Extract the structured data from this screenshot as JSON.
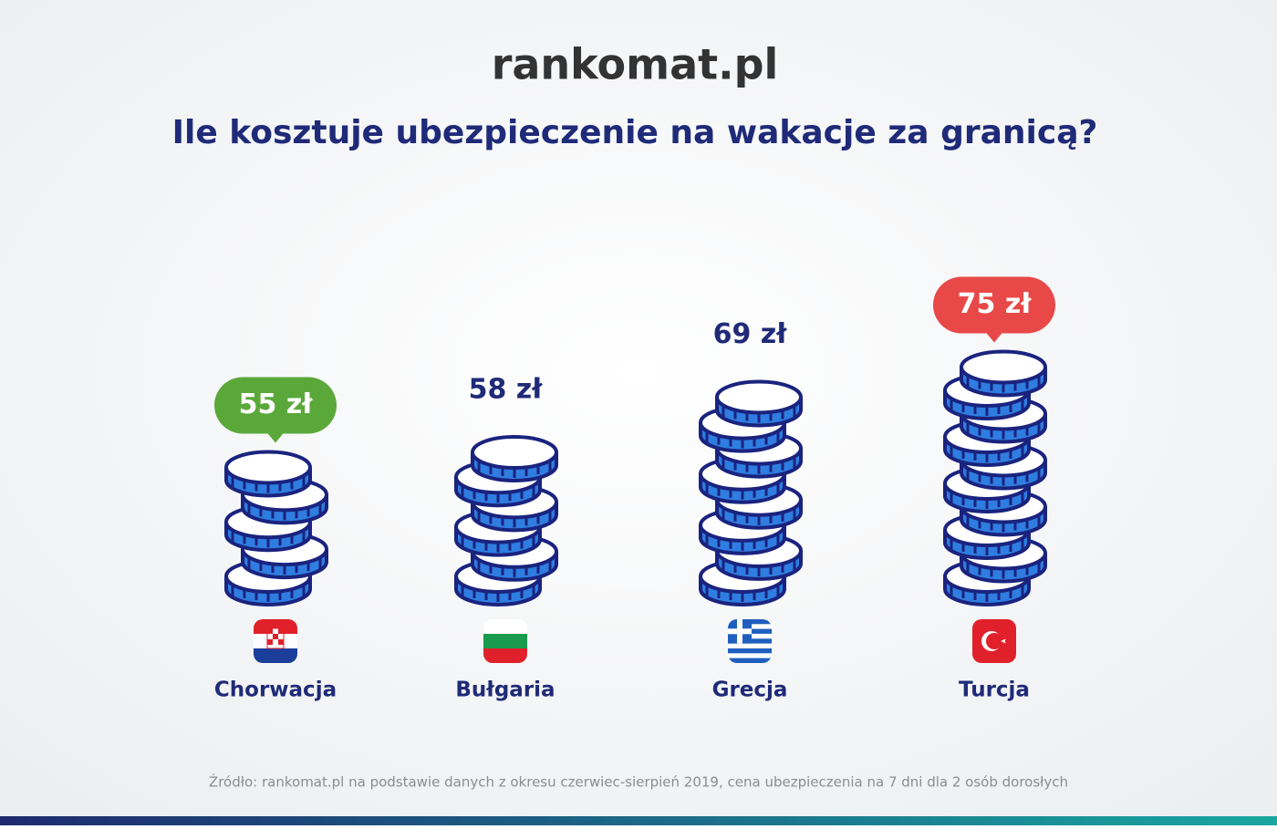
{
  "logo": "rankomat.pl",
  "chart_data": {
    "type": "coin-stack",
    "title": "Ile kosztuje ubezpieczenie na wakacje za granicą?",
    "categories": [
      "Chorwacja",
      "Bułgaria",
      "Grecja",
      "Turcja"
    ],
    "values": [
      55,
      58,
      69,
      75
    ],
    "value_labels": [
      "55 zł",
      "58 zł",
      "69 zł",
      "75 zł"
    ],
    "color": "#2f7de1",
    "min_color": "#5aa83a",
    "max_color": "#e94848",
    "source": "Źródło: rankomat.pl na podstawie danych z okresu czerwiec-sierpień 2019, cena ubezpieczenia na 7 dni dla 2 osób dorosłych"
  }
}
